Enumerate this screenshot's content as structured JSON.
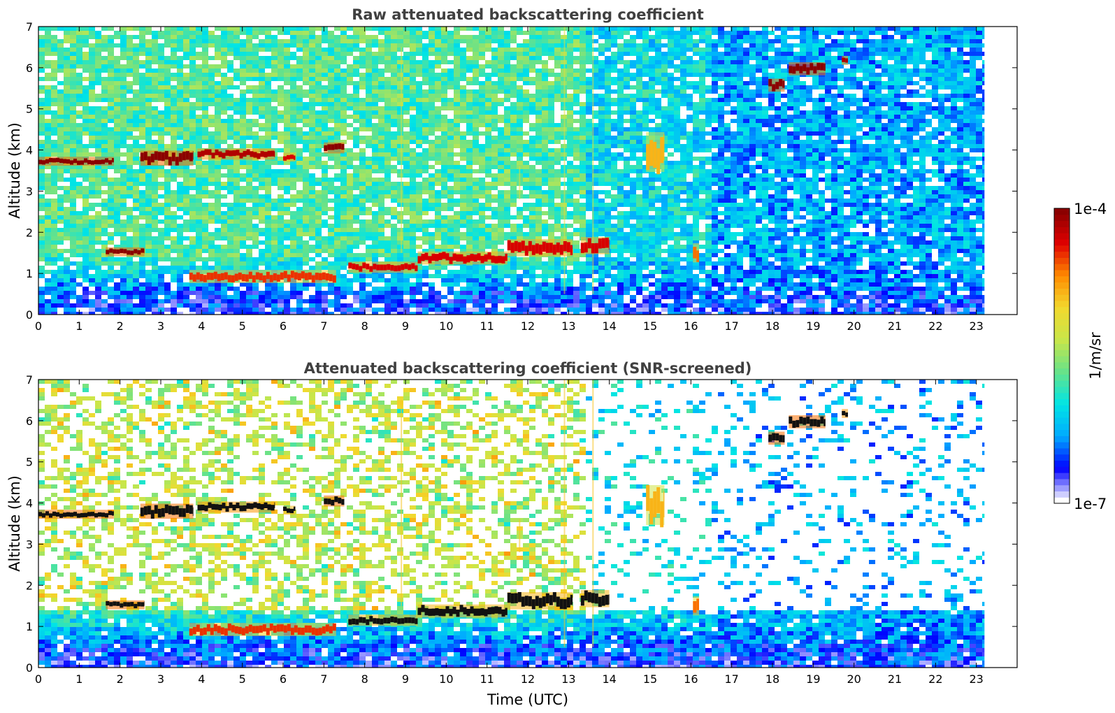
{
  "colors": {
    "colormap": [
      "#ffffff",
      "#0000ff",
      "#00aaff",
      "#00e5e5",
      "#66e28a",
      "#c8e64a",
      "#f2d92e",
      "#ff8c00",
      "#e00000",
      "#8b0000"
    ],
    "screened_cloud_core": "#111111",
    "axes_frame": "#000000",
    "title_text": "#404040"
  },
  "chart_data": [
    {
      "type": "heatmap",
      "title": "Raw attenuated backscattering coefficient",
      "xlabel": "",
      "ylabel": "Altitude (km)",
      "xlim": [
        0,
        24
      ],
      "ylim": [
        0,
        7
      ],
      "data_xlim": [
        0,
        23.2
      ],
      "xticks": [
        "0",
        "1",
        "2",
        "3",
        "4",
        "5",
        "6",
        "7",
        "8",
        "9",
        "10",
        "11",
        "12",
        "13",
        "14",
        "15",
        "16",
        "17",
        "18",
        "19",
        "20",
        "21",
        "22",
        "23"
      ],
      "yticks": [
        "0",
        "1",
        "2",
        "3",
        "4",
        "5",
        "6",
        "7"
      ],
      "grid": false,
      "background": {
        "surface_layer": {
          "top_km": 0.6,
          "level": 0.12
        },
        "noise": [
          {
            "x0": 0,
            "x1": 13.5,
            "alt_high_km": 1.5,
            "level": 0.42
          },
          {
            "x0": 13.5,
            "x1": 16.5,
            "alt_high_km": 1.5,
            "level": 0.32
          },
          {
            "x0": 16.5,
            "x1": 23.2,
            "alt_high_km": 1.5,
            "level": 0.24
          }
        ]
      },
      "cloud_layers": [
        {
          "x0": 0.0,
          "x1": 1.85,
          "base_km": 3.65,
          "top_km": 3.8,
          "value": 1.0
        },
        {
          "x0": 2.5,
          "x1": 3.8,
          "base_km": 3.65,
          "top_km": 3.95,
          "value": 1.0
        },
        {
          "x0": 3.9,
          "x1": 5.8,
          "base_km": 3.8,
          "top_km": 4.0,
          "value": 0.95
        },
        {
          "x0": 6.0,
          "x1": 6.3,
          "base_km": 3.75,
          "top_km": 3.9,
          "value": 0.9
        },
        {
          "x0": 7.0,
          "x1": 7.5,
          "base_km": 3.95,
          "top_km": 4.15,
          "value": 1.0
        },
        {
          "x0": 1.65,
          "x1": 2.6,
          "base_km": 1.45,
          "top_km": 1.6,
          "value": 1.0
        },
        {
          "x0": 3.7,
          "x1": 7.3,
          "base_km": 0.8,
          "top_km": 1.05,
          "value": 0.85
        },
        {
          "x0": 7.6,
          "x1": 9.3,
          "base_km": 1.05,
          "top_km": 1.25,
          "value": 0.9
        },
        {
          "x0": 9.3,
          "x1": 11.5,
          "base_km": 1.25,
          "top_km": 1.5,
          "value": 0.9
        },
        {
          "x0": 11.5,
          "x1": 13.1,
          "base_km": 1.45,
          "top_km": 1.8,
          "value": 0.9
        },
        {
          "x0": 13.3,
          "x1": 14.0,
          "base_km": 1.5,
          "top_km": 1.85,
          "value": 0.9
        },
        {
          "x0": 16.05,
          "x1": 16.2,
          "base_km": 1.3,
          "top_km": 1.7,
          "value": 0.8
        },
        {
          "x0": 14.9,
          "x1": 15.35,
          "base_km": 3.5,
          "top_km": 4.4,
          "value": 0.72
        },
        {
          "x0": 17.9,
          "x1": 18.3,
          "base_km": 5.45,
          "top_km": 5.7,
          "value": 1.0
        },
        {
          "x0": 18.4,
          "x1": 19.3,
          "base_km": 5.85,
          "top_km": 6.1,
          "value": 1.0
        },
        {
          "x0": 19.7,
          "x1": 19.85,
          "base_km": 6.1,
          "top_km": 6.25,
          "value": 0.95
        }
      ],
      "vertical_streaks": [
        {
          "x": 8.9,
          "from_km": 1.5,
          "to_km": 6.5
        },
        {
          "x": 11.8,
          "from_km": 2.8,
          "to_km": 3.6
        },
        {
          "x": 12.9,
          "from_km": 0.5,
          "to_km": 7.0
        },
        {
          "x": 13.6,
          "from_km": 0.5,
          "to_km": 7.0
        }
      ]
    },
    {
      "type": "heatmap",
      "title": "Attenuated backscattering coefficient (SNR-screened)",
      "xlabel": "Time (UTC)",
      "ylabel": "Altitude (km)",
      "xlim": [
        0,
        24
      ],
      "ylim": [
        0,
        7
      ],
      "data_xlim": [
        0,
        23.2
      ],
      "xticks": [
        "0",
        "1",
        "2",
        "3",
        "4",
        "5",
        "6",
        "7",
        "8",
        "9",
        "10",
        "11",
        "12",
        "13",
        "14",
        "15",
        "16",
        "17",
        "18",
        "19",
        "20",
        "21",
        "22",
        "23"
      ],
      "yticks": [
        "0",
        "1",
        "2",
        "3",
        "4",
        "5",
        "6",
        "7"
      ],
      "grid": false,
      "screened": true,
      "colorbar": {
        "label": "1/m/sr",
        "min_label": "1e-7",
        "max_label": "1e-4",
        "scale": "log",
        "range": [
          1e-07,
          0.0001
        ]
      }
    }
  ]
}
